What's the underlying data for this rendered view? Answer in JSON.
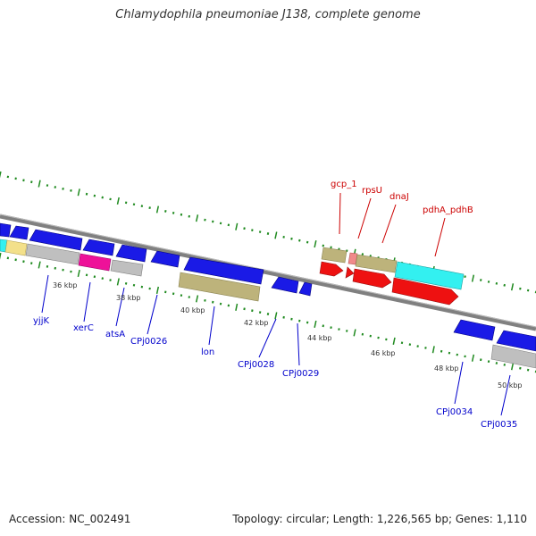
{
  "title": "Chlamydophila pneumoniae J138, complete genome",
  "footer": {
    "accession": "Accession: NC_002491",
    "info": "Topology: circular; Length: 1,226,565 bp; Genes: 1,110"
  },
  "colors": {
    "background": "#ffffff",
    "backbone": "#7f7f7f",
    "tick": "#1f8a1f",
    "forward_label": "#cc0000",
    "reverse_label": "#0000cc"
  },
  "kbp_labels": [
    "36 kbp",
    "38 kbp",
    "40 kbp",
    "42 kbp",
    "44 kbp",
    "46 kbp",
    "48 kbp",
    "50 kbp"
  ],
  "forward_gene_labels": [
    "gcp_1",
    "rpsU",
    "dnaJ",
    "pdhA_pdhB"
  ],
  "reverse_gene_labels": [
    "yjjK",
    "xerC",
    "atsA",
    "CPj0026",
    "lon",
    "CPj0028",
    "CPj0029",
    "CPj0034",
    "CPj0035"
  ]
}
